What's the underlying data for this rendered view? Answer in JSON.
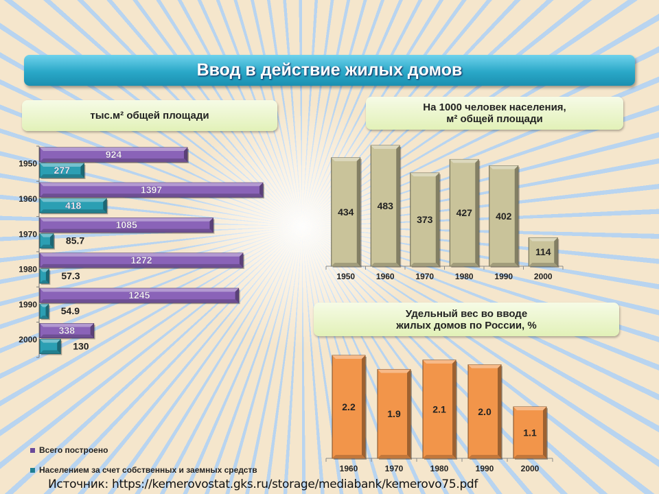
{
  "title": "Ввод в действие жилых домов",
  "colors": {
    "total": "#8a63b8",
    "population": "#2b9fb3",
    "per1000": "#c9c39a",
    "share": "#f2954a"
  },
  "chart_data": [
    {
      "type": "bar",
      "orientation": "horizontal",
      "title": "тыс.м² общей площади",
      "categories": [
        "1950",
        "1960",
        "1970",
        "1980",
        "1990",
        "2000"
      ],
      "series": [
        {
          "name": "Всего построено",
          "values": [
            924,
            1397,
            1085,
            1272,
            1245,
            338
          ],
          "labels": [
            "924",
            "1397",
            "1085",
            "1272",
            "1245",
            "338"
          ]
        },
        {
          "name": "Населением за счет собственных и заемных средств",
          "values": [
            277,
            418,
            85.7,
            57.3,
            54.9,
            130
          ],
          "labels": [
            "277",
            "418",
            "85.7",
            "57.3",
            "54.9",
            "130"
          ]
        }
      ],
      "legend": "bottom-left"
    },
    {
      "type": "bar",
      "title_line1": "На 1000 человек населения,",
      "title_line2": "м² общей площади",
      "categories": [
        "1950",
        "1960",
        "1970",
        "1980",
        "1990",
        "2000"
      ],
      "values": [
        434,
        483,
        373,
        427,
        402,
        114
      ],
      "labels": [
        "434",
        "483",
        "373",
        "427",
        "402",
        "114"
      ]
    },
    {
      "type": "bar",
      "title_line1": "Удельный вес во вводе",
      "title_line2": "жилых домов по России, %",
      "categories": [
        "1960",
        "1970",
        "1980",
        "1990",
        "2000"
      ],
      "values": [
        2.2,
        1.9,
        2.1,
        2.0,
        1.1
      ],
      "labels": [
        "2.2",
        "1.9",
        "2.1",
        "2.0",
        "1.1"
      ]
    }
  ],
  "source": "Источник: https://kemerovostat.gks.ru/storage/mediabank/kemerovo75.pdf"
}
